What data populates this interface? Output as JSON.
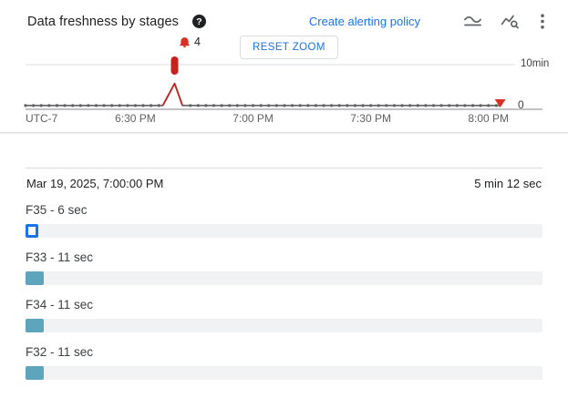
{
  "colors": {
    "accent": "#1a73e8",
    "danger": "#c5221f",
    "danger_marker": "#d93025",
    "line": "#616161",
    "grid": "#dadce0",
    "axis": "#9aa0a6",
    "bar": "#5fa4bd",
    "track": "#f0f2f4",
    "text": "#202124",
    "text_secondary": "#5f6368"
  },
  "header": {
    "title": "Data freshness by stages",
    "help_glyph": "?",
    "create_alerting_policy": "Create alerting policy"
  },
  "chart": {
    "reset_zoom_label": "RESET ZOOM"
  },
  "chart_data": {
    "type": "line",
    "title": "Data freshness by stages",
    "x_ticks": [
      "UTC-7",
      "6:30 PM",
      "7:00 PM",
      "7:30 PM",
      "8:00 PM"
    ],
    "tick_minutes": [
      30,
      60,
      90,
      120
    ],
    "x_domain": [
      2,
      127.5
    ],
    "x_unit": "minutes after 6:00 PM (UTC-7)",
    "y_unit": "seconds",
    "y_max": 680,
    "threshold_label": "10min",
    "threshold_value": 600,
    "end_value_label": "0",
    "alert_count": 4,
    "alert_marker_minute": 40,
    "end_marker_minute": 123,
    "flat_value": 15,
    "dot_step_minutes": 2,
    "series": [
      {
        "name": "data freshness",
        "points": [
          [
            2,
            15
          ],
          [
            37,
            15
          ],
          [
            40,
            330
          ],
          [
            42,
            15
          ],
          [
            123,
            15
          ]
        ]
      }
    ],
    "spike_points": [
      [
        37,
        15
      ],
      [
        40,
        330
      ],
      [
        42,
        15
      ]
    ],
    "legend": "off",
    "grid": "threshold line only"
  },
  "detail": {
    "timestamp": "Mar 19, 2025, 7:00:00 PM",
    "duration": "5 min 12 sec",
    "total_seconds": 312,
    "stages": [
      {
        "label": "F35 - 6 sec",
        "seconds": 6,
        "selected": true
      },
      {
        "label": "F33 - 11 sec",
        "seconds": 11,
        "selected": false
      },
      {
        "label": "F34 - 11 sec",
        "seconds": 11,
        "selected": false
      },
      {
        "label": "F32 - 11 sec",
        "seconds": 11,
        "selected": false
      }
    ]
  }
}
